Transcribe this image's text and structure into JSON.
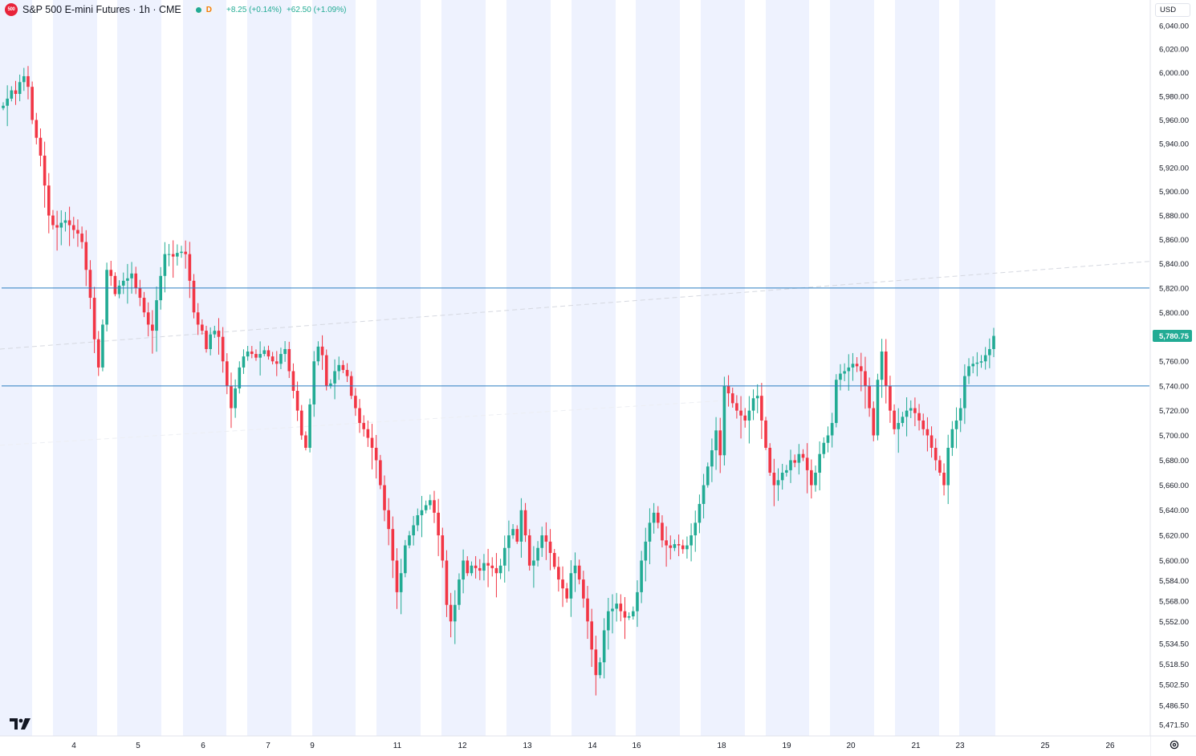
{
  "header": {
    "symbol_logo_text": "500",
    "title": "S&P 500 E-mini Futures · 1h · CME",
    "delay_badge": "D",
    "change_abs": "+8.25 (+0.14%)",
    "change_pct": "+62.50 (+1.09%)"
  },
  "currency": "USD",
  "colors": {
    "up": "#22ab94",
    "down": "#f23645",
    "session_band": "#eef2fe",
    "hline": "#2a7ec0",
    "last_price_bg": "#22ab94",
    "axis_text": "#131722"
  },
  "icons": {
    "logo": "tradingview-logo-icon",
    "settings": "gear-icon",
    "status": "live-dot-icon"
  },
  "chart_data": {
    "type": "candlestick",
    "title": "S&P 500 E-mini Futures · 1h · CME",
    "xlabel": "",
    "ylabel": "",
    "y_axis": {
      "position": "right",
      "scale": "log",
      "ticks": [
        "6,040.00",
        "6,020.00",
        "6,000.00",
        "5,980.00",
        "5,960.00",
        "5,940.00",
        "5,920.00",
        "5,900.00",
        "5,880.00",
        "5,860.00",
        "5,840.00",
        "5,820.00",
        "5,800.00",
        "5,780.00",
        "5,760.00",
        "5,740.00",
        "5,720.00",
        "5,700.00",
        "5,680.00",
        "5,660.00",
        "5,640.00",
        "5,620.00",
        "5,600.00",
        "5,584.00",
        "5,568.00",
        "5,552.00",
        "5,534.50",
        "5,518.50",
        "5,502.50",
        "5,486.50",
        "5,471.50"
      ]
    },
    "x_axis": {
      "tick_labels": [
        "4",
        "5",
        "6",
        "7",
        "9",
        "11",
        "12",
        "13",
        "14",
        "16",
        "18",
        "19",
        "20",
        "21",
        "23",
        "25",
        "26"
      ]
    },
    "last_price": 5780.75,
    "last_price_label": "5,780.75",
    "horizontal_lines": [
      5820,
      5740
    ],
    "trend_line": {
      "description": "faint dashed upward trend line",
      "from_price": 5770,
      "to_price": 5842
    },
    "approx_hourly_closes": [
      5972,
      5978,
      5985,
      5982,
      5992,
      5997,
      5988,
      5960,
      5945,
      5930,
      5905,
      5880,
      5872,
      5870,
      5874,
      5876,
      5872,
      5868,
      5865,
      5858,
      5835,
      5812,
      5778,
      5755,
      5790,
      5835,
      5830,
      5815,
      5822,
      5826,
      5828,
      5832,
      5820,
      5812,
      5800,
      5790,
      5785,
      5810,
      5830,
      5848,
      5848,
      5846,
      5849,
      5850,
      5848,
      5826,
      5800,
      5790,
      5785,
      5770,
      5782,
      5785,
      5780,
      5760,
      5740,
      5722,
      5738,
      5755,
      5764,
      5768,
      5766,
      5763,
      5766,
      5769,
      5764,
      5760,
      5758,
      5766,
      5770,
      5752,
      5736,
      5720,
      5700,
      5690,
      5725,
      5760,
      5772,
      5765,
      5740,
      5742,
      5752,
      5757,
      5753,
      5748,
      5732,
      5722,
      5710,
      5705,
      5698,
      5690,
      5680,
      5660,
      5640,
      5625,
      5600,
      5575,
      5590,
      5612,
      5620,
      5628,
      5636,
      5640,
      5644,
      5648,
      5638,
      5620,
      5600,
      5565,
      5552,
      5565,
      5585,
      5600,
      5590,
      5596,
      5594,
      5592,
      5598,
      5596,
      5594,
      5590,
      5596,
      5610,
      5620,
      5625,
      5615,
      5640,
      5620,
      5596,
      5600,
      5610,
      5620,
      5615,
      5606,
      5595,
      5585,
      5578,
      5570,
      5590,
      5596,
      5585,
      5570,
      5552,
      5530,
      5510,
      5520,
      5545,
      5560,
      5562,
      5566,
      5560,
      5555,
      5556,
      5560,
      5575,
      5600,
      5615,
      5630,
      5638,
      5630,
      5616,
      5612,
      5610,
      5613,
      5612,
      5609,
      5612,
      5620,
      5630,
      5645,
      5660,
      5675,
      5688,
      5704,
      5684,
      5740,
      5734,
      5726,
      5720,
      5716,
      5712,
      5720,
      5730,
      5732,
      5712,
      5690,
      5670,
      5660,
      5664,
      5670,
      5672,
      5680,
      5678,
      5685,
      5682,
      5672,
      5660,
      5670,
      5685,
      5694,
      5700,
      5710,
      5745,
      5750,
      5752,
      5755,
      5758,
      5756,
      5752,
      5740,
      5722,
      5700,
      5745,
      5768,
      5740,
      5720,
      5705,
      5710,
      5715,
      5720,
      5722,
      5718,
      5712,
      5705,
      5700,
      5690,
      5680,
      5670,
      5660,
      5690,
      5705,
      5712,
      5722,
      5748,
      5756,
      5758,
      5759,
      5760,
      5765,
      5770,
      5780.75
    ]
  }
}
